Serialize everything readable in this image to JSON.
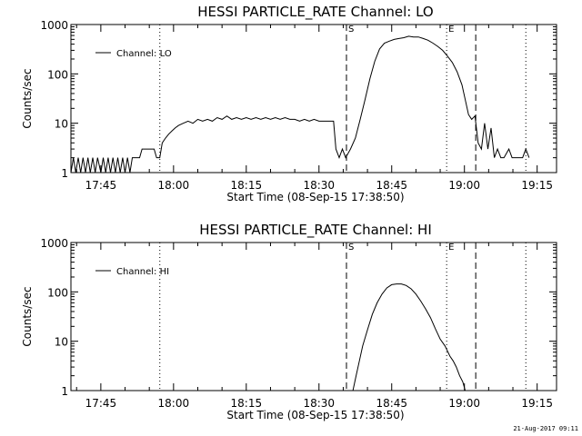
{
  "chart_data": [
    {
      "type": "line",
      "title": "HESSI PARTICLE_RATE Channel: LO",
      "xlabel": "Start Time (08-Sep-15 17:38:50)",
      "ylabel": "Counts/sec",
      "yscale": "log",
      "xlim": [
        "17:38:50",
        "19:19:00"
      ],
      "ylim": [
        1,
        1000
      ],
      "x_ticks": [
        "17:45",
        "18:00",
        "18:15",
        "18:30",
        "18:45",
        "19:00",
        "19:15"
      ],
      "y_ticks": [
        "1",
        "10",
        "100",
        "1000"
      ],
      "legend": {
        "position": "top-left",
        "label": "Channel: LO"
      },
      "markers": [
        {
          "time": "17:57:10",
          "style": "dotted",
          "label": ""
        },
        {
          "time": "18:35:40",
          "style": "dashed",
          "label": "S"
        },
        {
          "time": "18:56:20",
          "style": "dotted",
          "label": "E"
        },
        {
          "time": "19:02:20",
          "style": "dashed",
          "label": ""
        },
        {
          "time": "19:12:40",
          "style": "dotted",
          "label": ""
        }
      ],
      "series": [
        {
          "name": "Channel: LO",
          "points": [
            [
              "17:38:50",
              1
            ],
            [
              "17:39:20",
              2
            ],
            [
              "17:39:50",
              1
            ],
            [
              "17:40:20",
              2
            ],
            [
              "17:40:50",
              1
            ],
            [
              "17:41:20",
              2
            ],
            [
              "17:41:50",
              1
            ],
            [
              "17:42:20",
              2
            ],
            [
              "17:42:50",
              1
            ],
            [
              "17:43:20",
              2
            ],
            [
              "17:43:50",
              1
            ],
            [
              "17:44:20",
              2
            ],
            [
              "17:45:00",
              1
            ],
            [
              "17:45:30",
              2
            ],
            [
              "17:46:00",
              1
            ],
            [
              "17:46:30",
              2
            ],
            [
              "17:47:00",
              1
            ],
            [
              "17:47:30",
              2
            ],
            [
              "17:48:00",
              1
            ],
            [
              "17:48:30",
              2
            ],
            [
              "17:49:00",
              1
            ],
            [
              "17:49:30",
              2
            ],
            [
              "17:50:00",
              1
            ],
            [
              "17:50:30",
              2
            ],
            [
              "17:51:00",
              1
            ],
            [
              "17:51:30",
              2
            ],
            [
              "17:52:00",
              2
            ],
            [
              "17:53:00",
              2
            ],
            [
              "17:53:30",
              3
            ],
            [
              "17:56:00",
              3
            ],
            [
              "17:56:30",
              2
            ],
            [
              "17:57:10",
              2
            ],
            [
              "17:57:40",
              4
            ],
            [
              "17:58:20",
              5
            ],
            [
              "17:59:00",
              6
            ],
            [
              "17:59:40",
              7
            ],
            [
              "18:00:20",
              8
            ],
            [
              "18:01:00",
              9
            ],
            [
              "18:02:00",
              10
            ],
            [
              "18:03:00",
              11
            ],
            [
              "18:04:00",
              10
            ],
            [
              "18:05:00",
              12
            ],
            [
              "18:06:00",
              11
            ],
            [
              "18:07:00",
              12
            ],
            [
              "18:08:00",
              11
            ],
            [
              "18:09:00",
              13
            ],
            [
              "18:10:00",
              12
            ],
            [
              "18:11:00",
              14
            ],
            [
              "18:12:00",
              12
            ],
            [
              "18:13:00",
              13
            ],
            [
              "18:14:00",
              12
            ],
            [
              "18:15:00",
              13
            ],
            [
              "18:16:00",
              12
            ],
            [
              "18:17:00",
              13
            ],
            [
              "18:18:00",
              12
            ],
            [
              "18:19:00",
              13
            ],
            [
              "18:20:00",
              12
            ],
            [
              "18:21:00",
              13
            ],
            [
              "18:22:00",
              12
            ],
            [
              "18:23:00",
              13
            ],
            [
              "18:24:00",
              12
            ],
            [
              "18:25:00",
              12
            ],
            [
              "18:26:00",
              11
            ],
            [
              "18:27:00",
              12
            ],
            [
              "18:28:00",
              11
            ],
            [
              "18:29:00",
              12
            ],
            [
              "18:30:00",
              11
            ],
            [
              "18:31:00",
              11
            ],
            [
              "18:32:00",
              11
            ],
            [
              "18:33:00",
              11
            ],
            [
              "18:33:30",
              3
            ],
            [
              "18:34:10",
              2
            ],
            [
              "18:34:50",
              3
            ],
            [
              "18:35:30",
              2
            ],
            [
              "18:36:30",
              3
            ],
            [
              "18:37:30",
              5
            ],
            [
              "18:38:30",
              12
            ],
            [
              "18:39:30",
              30
            ],
            [
              "18:40:30",
              80
            ],
            [
              "18:41:30",
              180
            ],
            [
              "18:42:30",
              320
            ],
            [
              "18:43:30",
              420
            ],
            [
              "18:44:30",
              460
            ],
            [
              "18:45:30",
              500
            ],
            [
              "18:46:30",
              520
            ],
            [
              "18:47:30",
              540
            ],
            [
              "18:48:30",
              580
            ],
            [
              "18:49:30",
              560
            ],
            [
              "18:50:30",
              560
            ],
            [
              "18:51:30",
              520
            ],
            [
              "18:52:30",
              480
            ],
            [
              "18:53:30",
              420
            ],
            [
              "18:54:30",
              360
            ],
            [
              "18:55:30",
              300
            ],
            [
              "18:56:30",
              230
            ],
            [
              "18:57:30",
              170
            ],
            [
              "18:58:30",
              110
            ],
            [
              "18:59:30",
              60
            ],
            [
              "19:00:10",
              30
            ],
            [
              "19:00:50",
              15
            ],
            [
              "19:01:30",
              12
            ],
            [
              "19:02:10",
              14
            ],
            [
              "19:02:50",
              4
            ],
            [
              "19:03:30",
              3
            ],
            [
              "19:04:10",
              10
            ],
            [
              "19:04:50",
              3
            ],
            [
              "19:05:30",
              8
            ],
            [
              "19:06:10",
              2
            ],
            [
              "19:06:50",
              3
            ],
            [
              "19:07:30",
              2
            ],
            [
              "19:08:10",
              2
            ],
            [
              "19:09:10",
              3
            ],
            [
              "19:09:50",
              2
            ],
            [
              "19:12:00",
              2
            ],
            [
              "19:12:40",
              3
            ],
            [
              "19:13:20",
              2
            ]
          ]
        }
      ]
    },
    {
      "type": "line",
      "title": "HESSI PARTICLE_RATE Channel: HI",
      "xlabel": "Start Time (08-Sep-15 17:38:50)",
      "ylabel": "Counts/sec",
      "yscale": "log",
      "xlim": [
        "17:38:50",
        "19:19:00"
      ],
      "ylim": [
        1,
        1000
      ],
      "x_ticks": [
        "17:45",
        "18:00",
        "18:15",
        "18:30",
        "18:45",
        "19:00",
        "19:15"
      ],
      "y_ticks": [
        "1",
        "10",
        "100",
        "1000"
      ],
      "legend": {
        "position": "top-left",
        "label": "Channel: HI"
      },
      "markers": [
        {
          "time": "17:57:10",
          "style": "dotted",
          "label": ""
        },
        {
          "time": "18:35:40",
          "style": "dashed",
          "label": "S"
        },
        {
          "time": "18:56:20",
          "style": "dotted",
          "label": "E"
        },
        {
          "time": "19:02:20",
          "style": "dashed",
          "label": ""
        },
        {
          "time": "19:12:40",
          "style": "dotted",
          "label": ""
        }
      ],
      "series": [
        {
          "name": "Channel: HI",
          "points": [
            [
              "18:37:00",
              1
            ],
            [
              "18:37:40",
              2
            ],
            [
              "18:38:20",
              4
            ],
            [
              "18:39:00",
              8
            ],
            [
              "18:40:00",
              17
            ],
            [
              "18:41:00",
              35
            ],
            [
              "18:42:00",
              60
            ],
            [
              "18:43:00",
              90
            ],
            [
              "18:44:00",
              120
            ],
            [
              "18:45:00",
              140
            ],
            [
              "18:46:00",
              145
            ],
            [
              "18:47:00",
              145
            ],
            [
              "18:48:00",
              135
            ],
            [
              "18:49:00",
              115
            ],
            [
              "18:50:00",
              90
            ],
            [
              "18:51:00",
              65
            ],
            [
              "18:52:00",
              45
            ],
            [
              "18:53:00",
              30
            ],
            [
              "18:54:00",
              18
            ],
            [
              "18:55:00",
              11
            ],
            [
              "18:56:00",
              8
            ],
            [
              "18:57:00",
              5
            ],
            [
              "18:57:40",
              4
            ],
            [
              "18:58:20",
              3
            ],
            [
              "18:59:00",
              2
            ],
            [
              "18:59:40",
              1.5
            ],
            [
              "19:00:10",
              1
            ]
          ]
        }
      ]
    }
  ],
  "timestamp": "21-Aug-2017 09:11"
}
